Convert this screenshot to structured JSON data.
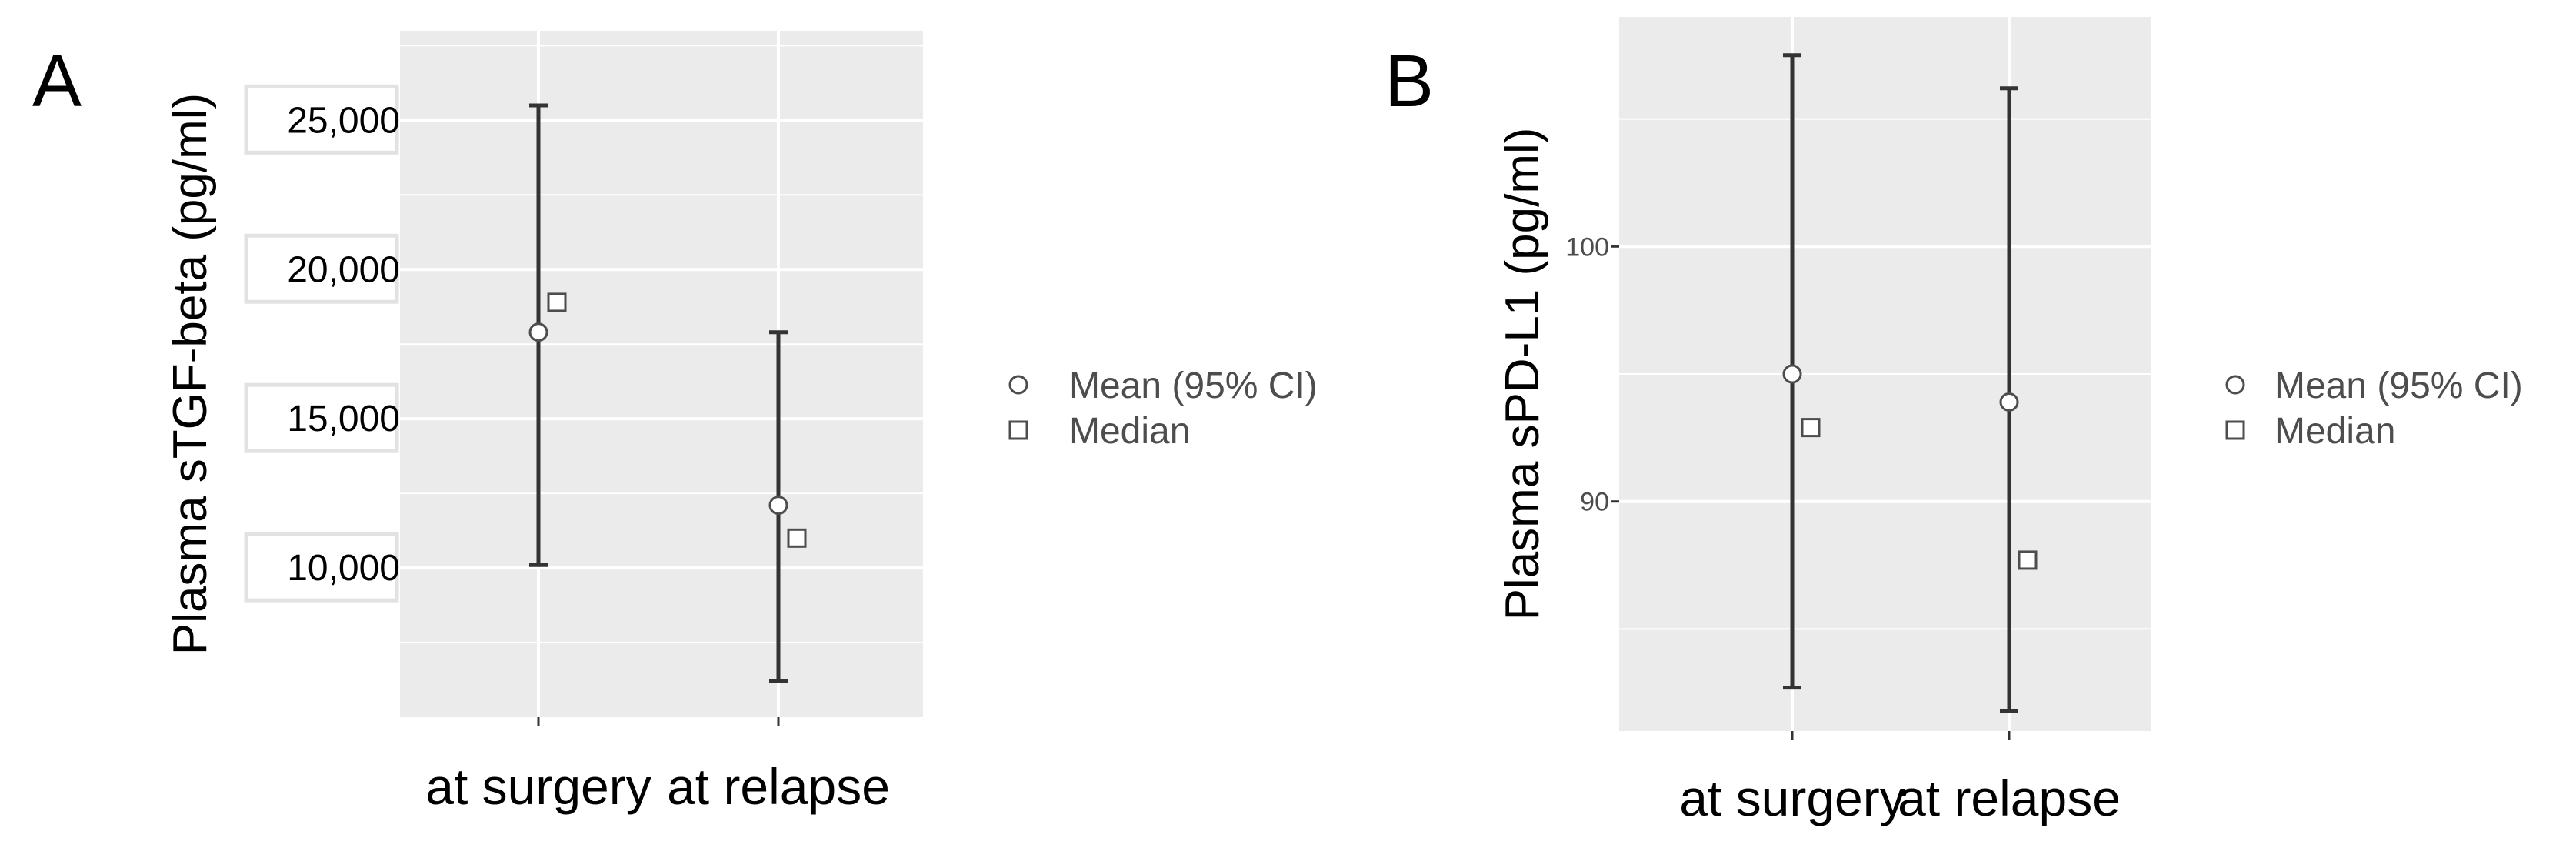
{
  "panel_a": {
    "letter": "A",
    "legend": [
      "Mean (95% CI)",
      "Median"
    ]
  },
  "panel_b": {
    "letter": "B",
    "legend": [
      "Mean (95% CI)",
      "Median"
    ]
  },
  "colors": {
    "panel_background": "#ebebeb",
    "gridline": "#ffffff",
    "errorbar": "#333333",
    "marker_edge": "#4d4d4d",
    "marker_fill": "#ffffff"
  },
  "chart_data": [
    {
      "type": "scatter",
      "title": "",
      "xlabel": "",
      "ylabel": "Plasma sTGF-beta (pg/ml)",
      "categories": [
        "at surgery",
        "at relapse"
      ],
      "yticks": [
        10000,
        15000,
        20000,
        25000
      ],
      "ytick_labels": [
        "10,000",
        "15,000",
        "20,000",
        "25,000"
      ],
      "ylim": [
        5000,
        28000
      ],
      "series": [
        {
          "name": "Mean (95% CI)",
          "values": [
            17900,
            12100
          ],
          "ci_low": [
            10100,
            6200
          ],
          "ci_high": [
            25500,
            17900
          ]
        },
        {
          "name": "Median",
          "values": [
            18900,
            11000
          ]
        }
      ],
      "grid": true,
      "legend": "right"
    },
    {
      "type": "scatter",
      "title": "",
      "xlabel": "",
      "ylabel": "Plasma sPD-L1 (pg/ml)",
      "categories": [
        "at surgery",
        "at relapse"
      ],
      "yticks": [
        90,
        100
      ],
      "ytick_labels": [
        "90",
        "100"
      ],
      "ylim": [
        81,
        109
      ],
      "series": [
        {
          "name": "Mean (95% CI)",
          "values": [
            95.0,
            93.9
          ],
          "ci_low": [
            82.7,
            81.8
          ],
          "ci_high": [
            107.5,
            106.2
          ]
        },
        {
          "name": "Median",
          "values": [
            92.9,
            87.7
          ]
        }
      ],
      "grid": true,
      "legend": "right"
    }
  ]
}
